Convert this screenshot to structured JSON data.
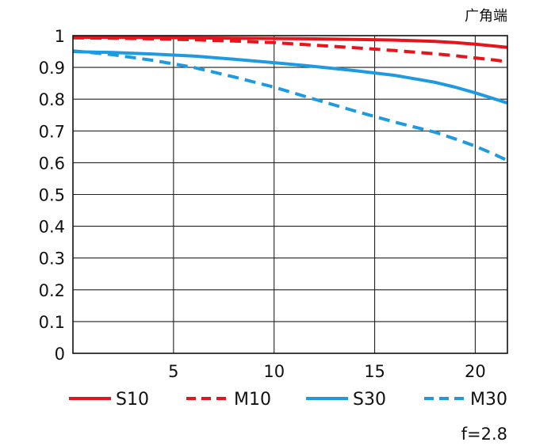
{
  "chart_data": {
    "type": "line",
    "title": "",
    "corner_label": "广角端",
    "aperture_label": "f=2.8",
    "xlabel": "",
    "ylabel": "",
    "xlim": [
      0,
      21.6
    ],
    "ylim": [
      0,
      1
    ],
    "grid": true,
    "legend_position": "bottom",
    "x_ticks": [
      5,
      10,
      15,
      20
    ],
    "y_ticks": [
      0,
      0.1,
      0.2,
      0.3,
      0.4,
      0.5,
      0.6,
      0.7,
      0.8,
      0.9,
      1
    ],
    "series": [
      {
        "name": "S10",
        "color": "#e8141c",
        "style": "solid",
        "x": [
          0,
          2,
          4,
          6,
          8,
          10,
          12,
          14,
          16,
          18,
          19,
          20,
          21,
          21.6
        ],
        "y": [
          0.995,
          0.995,
          0.994,
          0.993,
          0.992,
          0.991,
          0.99,
          0.988,
          0.986,
          0.982,
          0.978,
          0.973,
          0.967,
          0.963
        ]
      },
      {
        "name": "M10",
        "color": "#e8141c",
        "style": "dashed",
        "x": [
          0,
          2,
          4,
          6,
          8,
          10,
          12,
          14,
          16,
          18,
          19,
          20,
          21,
          21.6
        ],
        "y": [
          0.993,
          0.992,
          0.99,
          0.987,
          0.983,
          0.978,
          0.97,
          0.962,
          0.953,
          0.943,
          0.937,
          0.93,
          0.923,
          0.918
        ]
      },
      {
        "name": "S30",
        "color": "#1e9be0",
        "style": "solid",
        "x": [
          0,
          2,
          4,
          6,
          8,
          10,
          12,
          14,
          16,
          18,
          19,
          20,
          21,
          21.6
        ],
        "y": [
          0.95,
          0.947,
          0.942,
          0.936,
          0.926,
          0.915,
          0.903,
          0.89,
          0.875,
          0.853,
          0.838,
          0.82,
          0.8,
          0.788
        ]
      },
      {
        "name": "M30",
        "color": "#1e9be0",
        "style": "dashed",
        "x": [
          0,
          2,
          4,
          6,
          8,
          10,
          12,
          14,
          16,
          18,
          19,
          20,
          21,
          21.6
        ],
        "y": [
          0.952,
          0.94,
          0.922,
          0.9,
          0.87,
          0.838,
          0.8,
          0.763,
          0.728,
          0.696,
          0.675,
          0.652,
          0.625,
          0.607
        ]
      }
    ]
  }
}
